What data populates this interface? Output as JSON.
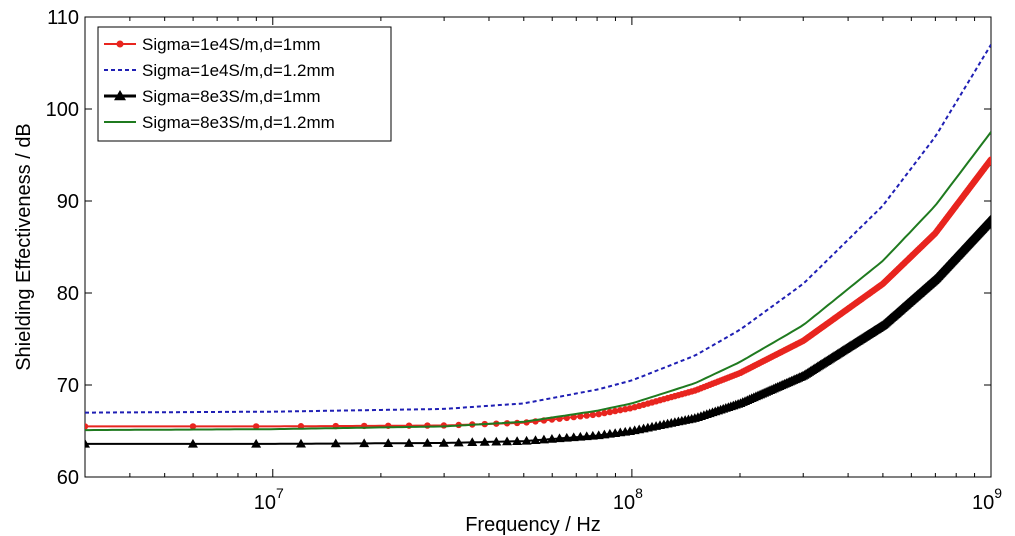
{
  "chart_data": {
    "type": "line",
    "title": "",
    "xlabel": "Frequency / Hz",
    "ylabel": "Shielding Effectiveness / dB",
    "x_scale": "log",
    "xlim": [
      3000000,
      1000000000
    ],
    "ylim": [
      60,
      110
    ],
    "x_ticks": [
      {
        "value": 10000000,
        "base": "10",
        "exp": "7"
      },
      {
        "value": 100000000,
        "base": "10",
        "exp": "8"
      },
      {
        "value": 1000000000,
        "base": "10",
        "exp": "9"
      }
    ],
    "y_ticks": [
      60,
      70,
      80,
      90,
      100,
      110
    ],
    "grid": false,
    "legend": "top-left",
    "series": [
      {
        "name": "Sigma=1e4S/m,d=1mm",
        "color": "#e8251f",
        "line_style": "solid",
        "marker": "circle",
        "x": [
          3000000,
          10000000,
          30000000,
          50000000,
          80000000,
          100000000,
          150000000,
          200000000,
          300000000,
          500000000,
          700000000,
          1000000000
        ],
        "y": [
          65.5,
          65.5,
          65.6,
          65.9,
          66.8,
          67.5,
          69.4,
          71.3,
          74.8,
          81.0,
          86.5,
          94.5
        ]
      },
      {
        "name": "Sigma=1e4S/m,d=1.2mm",
        "color": "#1f1fb4",
        "line_style": "dashed",
        "marker": "none",
        "x": [
          3000000,
          10000000,
          30000000,
          50000000,
          80000000,
          100000000,
          150000000,
          200000000,
          300000000,
          500000000,
          700000000,
          1000000000
        ],
        "y": [
          67.0,
          67.1,
          67.4,
          68.0,
          69.5,
          70.5,
          73.2,
          76.0,
          81.0,
          89.5,
          97.0,
          107.0
        ]
      },
      {
        "name": "Sigma=8e3S/m,d=1mm",
        "color": "#000000",
        "line_style": "solid",
        "marker": "triangle",
        "x": [
          3000000,
          10000000,
          30000000,
          50000000,
          80000000,
          100000000,
          150000000,
          200000000,
          300000000,
          500000000,
          700000000,
          1000000000
        ],
        "y": [
          63.6,
          63.6,
          63.7,
          63.9,
          64.5,
          65.0,
          66.4,
          68.0,
          71.0,
          76.5,
          81.5,
          88.0
        ]
      },
      {
        "name": "Sigma=8e3S/m,d=1.2mm",
        "color": "#1f7a1f",
        "line_style": "solid",
        "marker": "none",
        "x": [
          3000000,
          10000000,
          30000000,
          50000000,
          80000000,
          100000000,
          150000000,
          200000000,
          300000000,
          500000000,
          700000000,
          1000000000
        ],
        "y": [
          65.1,
          65.2,
          65.5,
          66.0,
          67.2,
          68.0,
          70.2,
          72.5,
          76.5,
          83.5,
          89.5,
          97.5
        ]
      }
    ]
  }
}
